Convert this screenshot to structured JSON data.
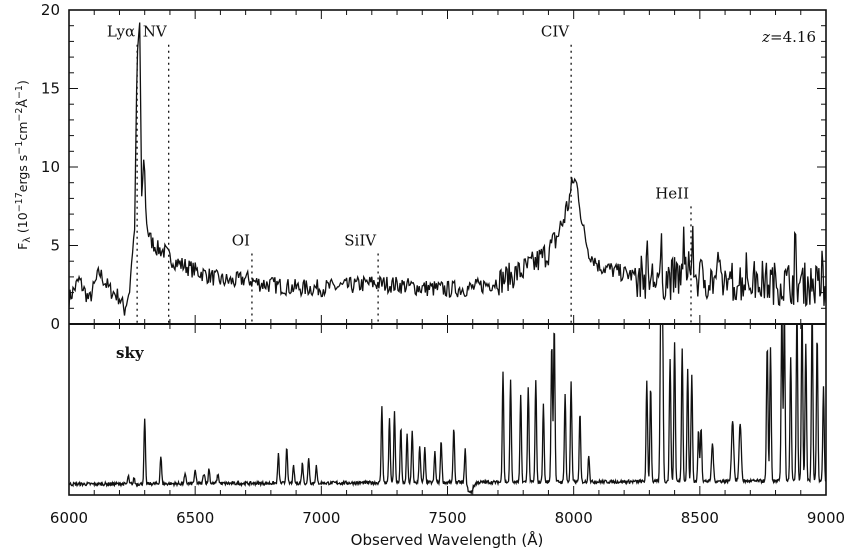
{
  "chart_data": [
    {
      "type": "line",
      "panel": "top",
      "xlim": [
        6000,
        9000
      ],
      "ylim": [
        0,
        20
      ],
      "ylabel": {
        "main": "F",
        "sub": "λ",
        "units": " (10",
        "exp1": "−17",
        "mid1": "ergs s",
        "exp2": "−1",
        "mid2": "cm",
        "exp3": "−2",
        "mid3": "Å",
        "exp4": "−1",
        "end": ")"
      },
      "y_ticks": [
        0,
        5,
        10,
        15,
        20
      ],
      "annotation": {
        "prefix": "z",
        "text": "=4.16"
      },
      "emission_lines": [
        {
          "name": "Lyα",
          "wavelength": 6270,
          "label_y": 18.3
        },
        {
          "name": "NV",
          "wavelength": 6395,
          "label_y": 18.3
        },
        {
          "name": "OI",
          "wavelength": 6725,
          "label_y": 5.0
        },
        {
          "name": "SiIV",
          "wavelength": 7225,
          "label_y": 5.0
        },
        {
          "name": "CIV",
          "wavelength": 7990,
          "label_y": 18.3
        },
        {
          "name": "HeII",
          "wavelength": 8465,
          "label_y": 8.0
        }
      ],
      "series": [
        {
          "color": "#111111",
          "points": [
            [
              6000,
              1.6
            ],
            [
              6040,
              2.8
            ],
            [
              6080,
              1.5
            ],
            [
              6120,
              3.3
            ],
            [
              6160,
              2.2
            ],
            [
              6200,
              1.7
            ],
            [
              6220,
              0.9
            ],
            [
              6240,
              2.2
            ],
            [
              6250,
              4.3
            ],
            [
              6260,
              6.0
            ],
            [
              6270,
              17.0
            ],
            [
              6280,
              19.2
            ],
            [
              6288,
              8.0
            ],
            [
              6298,
              11.0
            ],
            [
              6305,
              6.8
            ],
            [
              6315,
              5.6
            ],
            [
              6330,
              5.2
            ],
            [
              6350,
              4.8
            ],
            [
              6380,
              4.6
            ],
            [
              6400,
              4.2
            ],
            [
              6430,
              3.9
            ],
            [
              6460,
              3.7
            ],
            [
              6500,
              3.4
            ],
            [
              6550,
              3.1
            ],
            [
              6600,
              2.8
            ],
            [
              6650,
              2.7
            ],
            [
              6700,
              2.9
            ],
            [
              6750,
              2.6
            ],
            [
              6800,
              2.5
            ],
            [
              6900,
              2.3
            ],
            [
              7000,
              2.3
            ],
            [
              7100,
              2.4
            ],
            [
              7200,
              2.6
            ],
            [
              7300,
              2.5
            ],
            [
              7400,
              2.3
            ],
            [
              7500,
              2.2
            ],
            [
              7600,
              2.3
            ],
            [
              7700,
              2.7
            ],
            [
              7800,
              3.4
            ],
            [
              7850,
              3.9
            ],
            [
              7900,
              4.6
            ],
            [
              7930,
              5.4
            ],
            [
              7955,
              6.4
            ],
            [
              7975,
              7.5
            ],
            [
              7990,
              8.4
            ],
            [
              8000,
              9.2
            ],
            [
              8010,
              9.0
            ],
            [
              8020,
              8.2
            ],
            [
              8035,
              6.2
            ],
            [
              8060,
              4.6
            ],
            [
              8100,
              3.7
            ],
            [
              8200,
              3.2
            ],
            [
              8300,
              2.9
            ],
            [
              8400,
              2.9
            ],
            [
              8460,
              3.3
            ],
            [
              8470,
              5.6
            ],
            [
              8480,
              3.0
            ],
            [
              8600,
              2.7
            ],
            [
              8700,
              2.8
            ],
            [
              8800,
              2.6
            ],
            [
              8900,
              2.6
            ],
            [
              9000,
              2.4
            ]
          ]
        }
      ]
    },
    {
      "type": "line",
      "panel": "bottom",
      "name": "sky",
      "xlim": [
        6000,
        9000
      ],
      "xlabel": "Observed Wavelength (Å)",
      "x_ticks": [
        6000,
        6500,
        7000,
        7500,
        8000,
        8500,
        9000
      ],
      "y_ticks": [],
      "series": [
        {
          "name": "sky",
          "color": "#111111",
          "baseline": 0.04,
          "peaks": [
            [
              6235,
              0.05,
              3
            ],
            [
              6258,
              0.04,
              3
            ],
            [
              6300,
              0.38,
              4
            ],
            [
              6364,
              0.16,
              4
            ],
            [
              6460,
              0.05,
              5
            ],
            [
              6500,
              0.07,
              5
            ],
            [
              6535,
              0.06,
              5
            ],
            [
              6555,
              0.09,
              4
            ],
            [
              6590,
              0.05,
              5
            ],
            [
              6830,
              0.17,
              4
            ],
            [
              6863,
              0.22,
              4
            ],
            [
              6890,
              0.1,
              4
            ],
            [
              6925,
              0.12,
              4
            ],
            [
              6950,
              0.15,
              4
            ],
            [
              6980,
              0.1,
              4
            ],
            [
              7240,
              0.45,
              4
            ],
            [
              7270,
              0.38,
              4
            ],
            [
              7290,
              0.42,
              4
            ],
            [
              7315,
              0.32,
              4
            ],
            [
              7340,
              0.28,
              4
            ],
            [
              7360,
              0.3,
              4
            ],
            [
              7390,
              0.22,
              4
            ],
            [
              7410,
              0.2,
              4
            ],
            [
              7450,
              0.18,
              4
            ],
            [
              7475,
              0.25,
              4
            ],
            [
              7525,
              0.32,
              4
            ],
            [
              7570,
              0.2,
              4
            ],
            [
              7720,
              0.65,
              4
            ],
            [
              7750,
              0.6,
              4
            ],
            [
              7790,
              0.5,
              4
            ],
            [
              7820,
              0.55,
              4
            ],
            [
              7850,
              0.6,
              4
            ],
            [
              7880,
              0.45,
              4
            ],
            [
              7913,
              0.82,
              4
            ],
            [
              7923,
              0.92,
              4
            ],
            [
              7966,
              0.52,
              4
            ],
            [
              7990,
              0.58,
              4
            ],
            [
              8025,
              0.4,
              4
            ],
            [
              8060,
              0.16,
              4
            ],
            [
              8290,
              0.58,
              4
            ],
            [
              8305,
              0.56,
              4
            ],
            [
              8345,
              1.0,
              4
            ],
            [
              8352,
              1.0,
              4
            ],
            [
              8382,
              0.72,
              4
            ],
            [
              8400,
              0.82,
              4
            ],
            [
              8430,
              0.78,
              4
            ],
            [
              8452,
              0.66,
              4
            ],
            [
              8468,
              0.62,
              4
            ],
            [
              8495,
              0.3,
              4
            ],
            [
              8505,
              0.32,
              4
            ],
            [
              8550,
              0.22,
              5
            ],
            [
              8630,
              0.36,
              6
            ],
            [
              8660,
              0.34,
              6
            ],
            [
              8767,
              0.8,
              4
            ],
            [
              8780,
              0.78,
              4
            ],
            [
              8825,
              1.0,
              4
            ],
            [
              8835,
              1.0,
              4
            ],
            [
              8860,
              0.72,
              4
            ],
            [
              8885,
              1.0,
              4
            ],
            [
              8905,
              1.0,
              4
            ],
            [
              8920,
              0.8,
              4
            ],
            [
              8945,
              1.0,
              4
            ],
            [
              8965,
              0.85,
              4
            ],
            [
              8990,
              0.55,
              4
            ]
          ]
        }
      ]
    }
  ]
}
